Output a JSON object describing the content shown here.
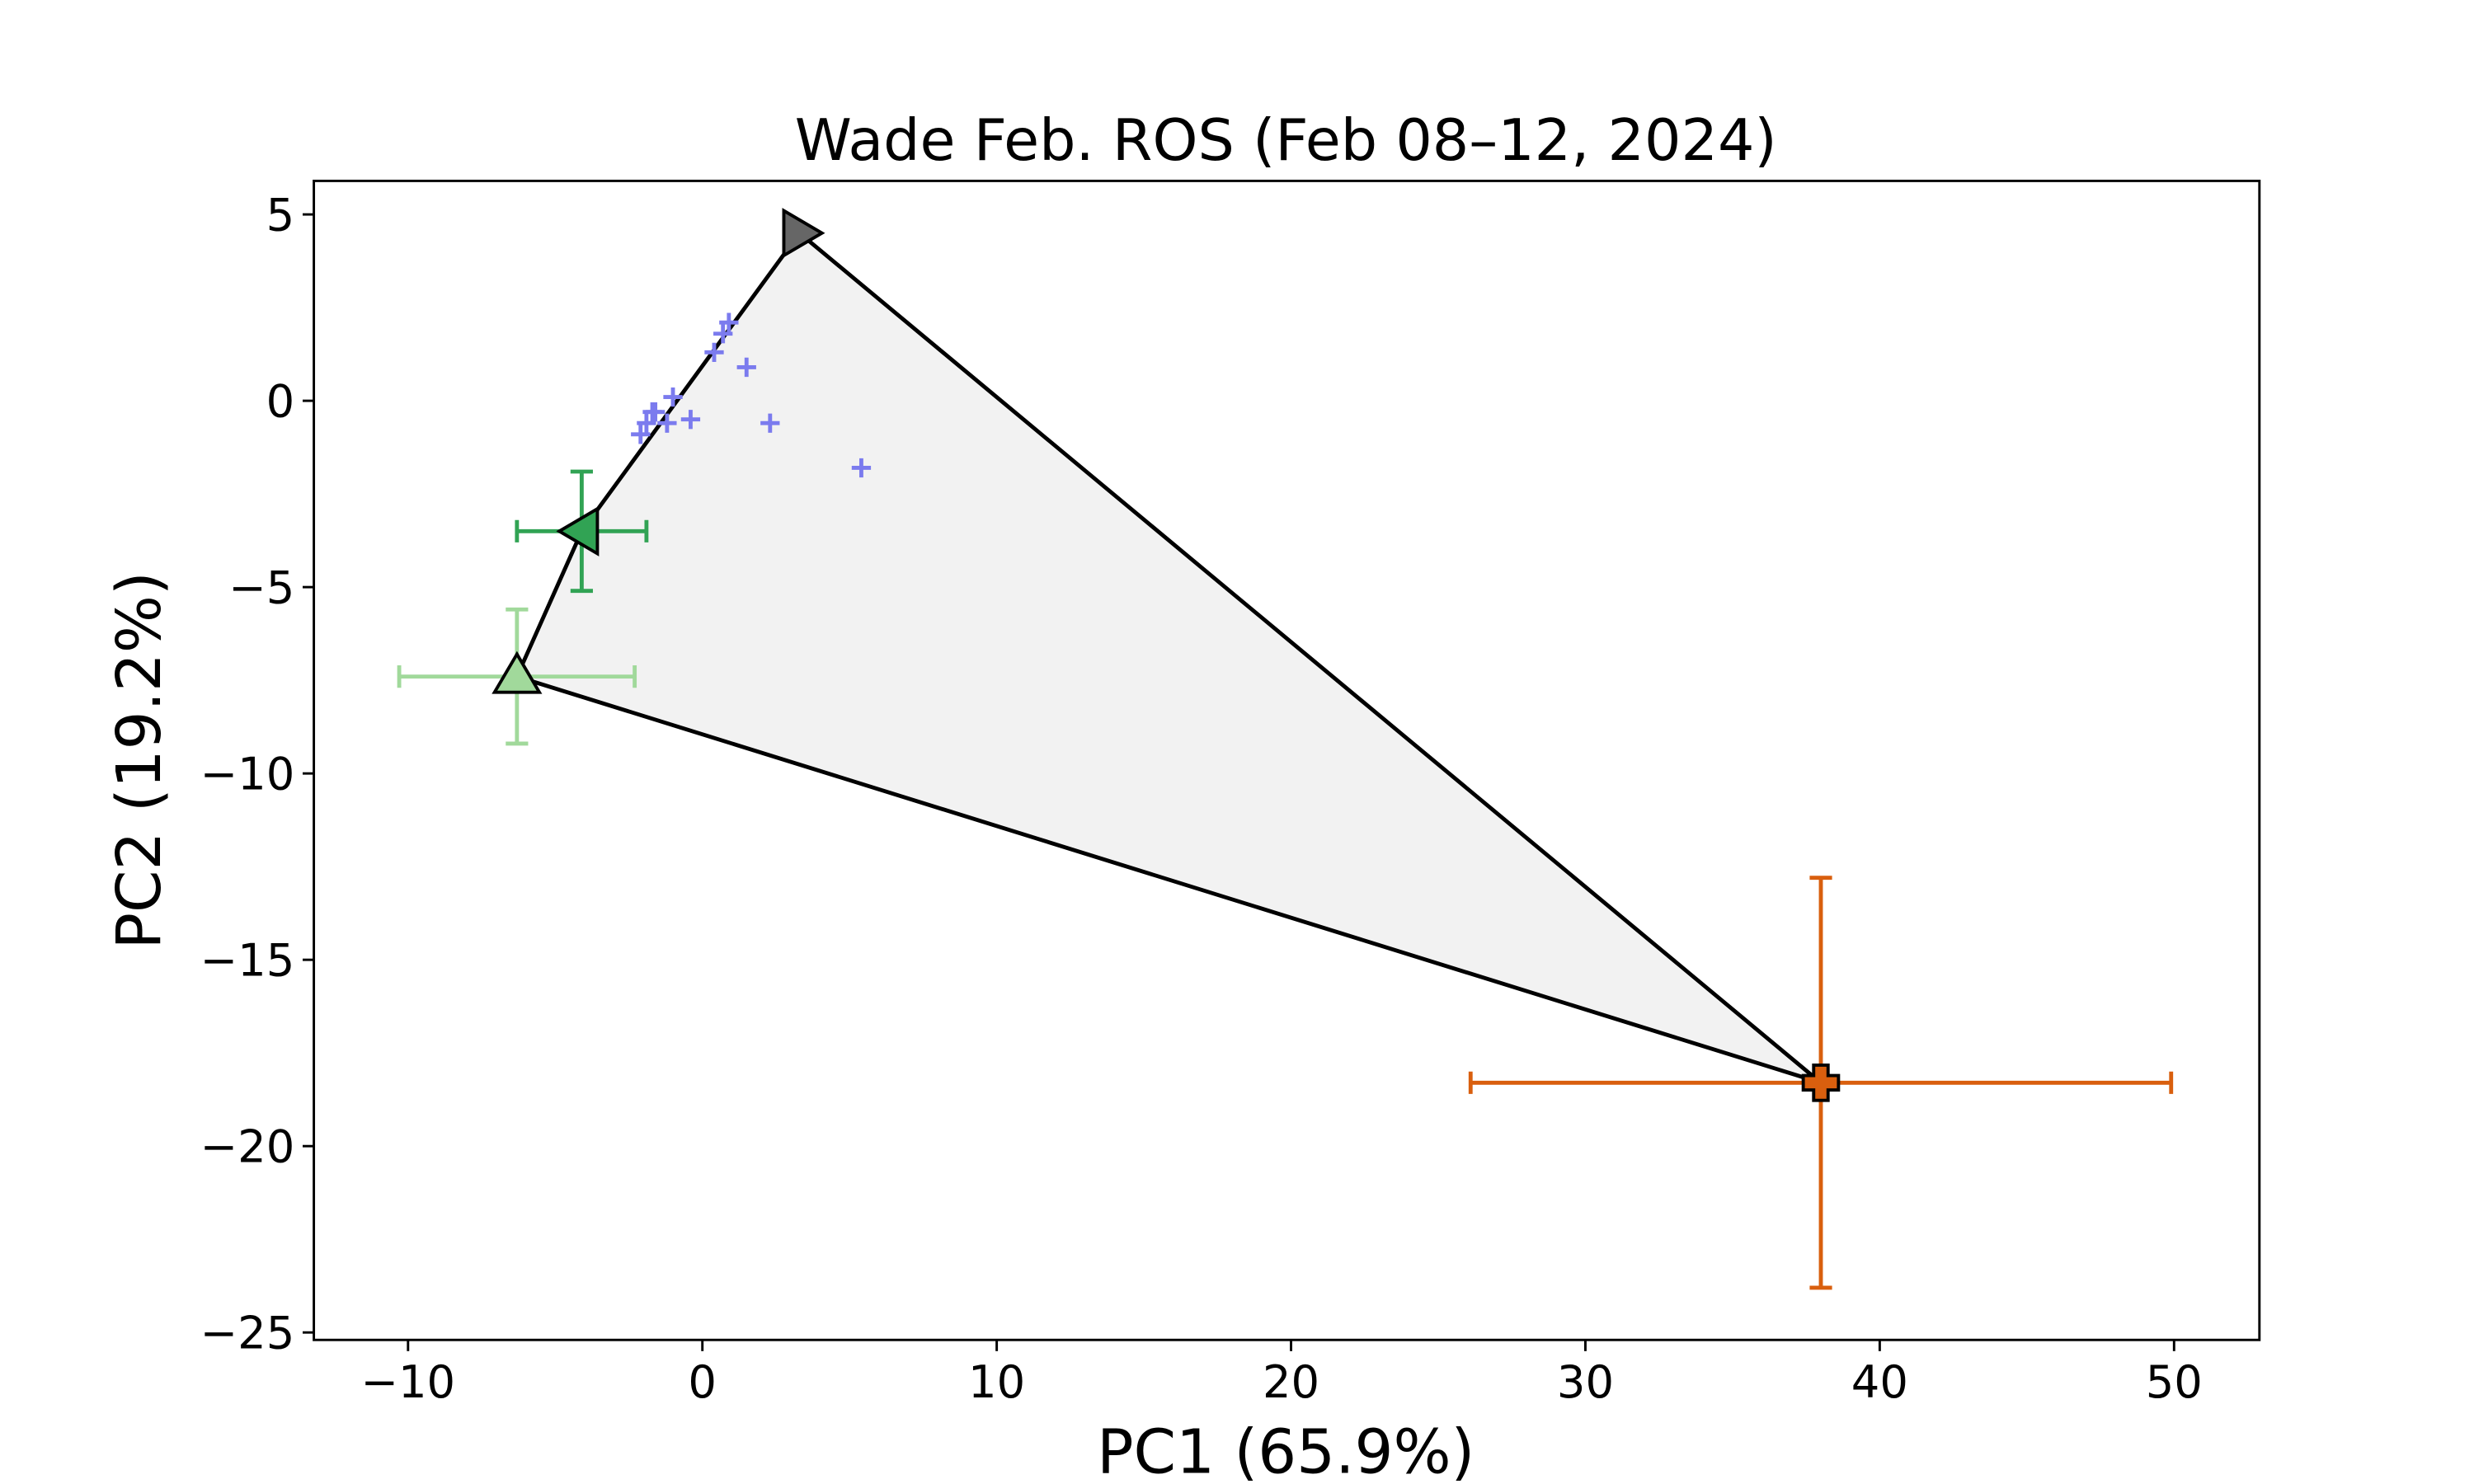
{
  "chart_data": {
    "type": "scatter",
    "title": "Wade Feb. ROS (Feb 08–12, 2024)",
    "x_label": "PC1 (65.9%)",
    "y_label": "PC2 (19.2%)",
    "xlim": [
      -13.2,
      52.9
    ],
    "ylim": [
      -25.2,
      5.9
    ],
    "xticks": [
      {
        "value": -10,
        "label": "−10"
      },
      0,
      10,
      20,
      30,
      40,
      50
    ],
    "yticks": [
      {
        "value": -25,
        "label": "−25"
      },
      {
        "value": -20,
        "label": "−20"
      },
      {
        "value": -15,
        "label": "−15"
      },
      {
        "value": -10,
        "label": "−10"
      },
      {
        "value": -5,
        "label": "−5"
      },
      0,
      5
    ],
    "hull_fill": "#f2f2f2",
    "end_members": [
      {
        "x": 3.3,
        "y": 4.5,
        "color": "#666666",
        "marker": "triangle-right"
      },
      {
        "x": 38.0,
        "y": -18.3,
        "xerr": 11.9,
        "yerr": 5.5,
        "color": "#d95f0e",
        "marker": "plus"
      },
      {
        "x": -6.3,
        "y": -7.4,
        "xerr": 4.0,
        "yerr": 1.8,
        "color": "#a1d99b",
        "marker": "triangle-up"
      },
      {
        "x": -4.1,
        "y": -3.5,
        "xerr": 2.2,
        "yerr": 1.6,
        "color": "#31a354",
        "marker": "triangle-left"
      }
    ],
    "samples": {
      "color": "#7b7bee",
      "x": [
        -2.1,
        -1.9,
        -1.7,
        -1.6,
        -1.2,
        -1.0,
        -0.4,
        0.4,
        0.7,
        0.9,
        1.5,
        2.3,
        5.4
      ],
      "y": [
        -0.9,
        -0.6,
        -0.3,
        -0.3,
        -0.6,
        0.1,
        -0.5,
        1.3,
        1.8,
        2.1,
        0.9,
        -0.6,
        -1.8
      ]
    }
  }
}
